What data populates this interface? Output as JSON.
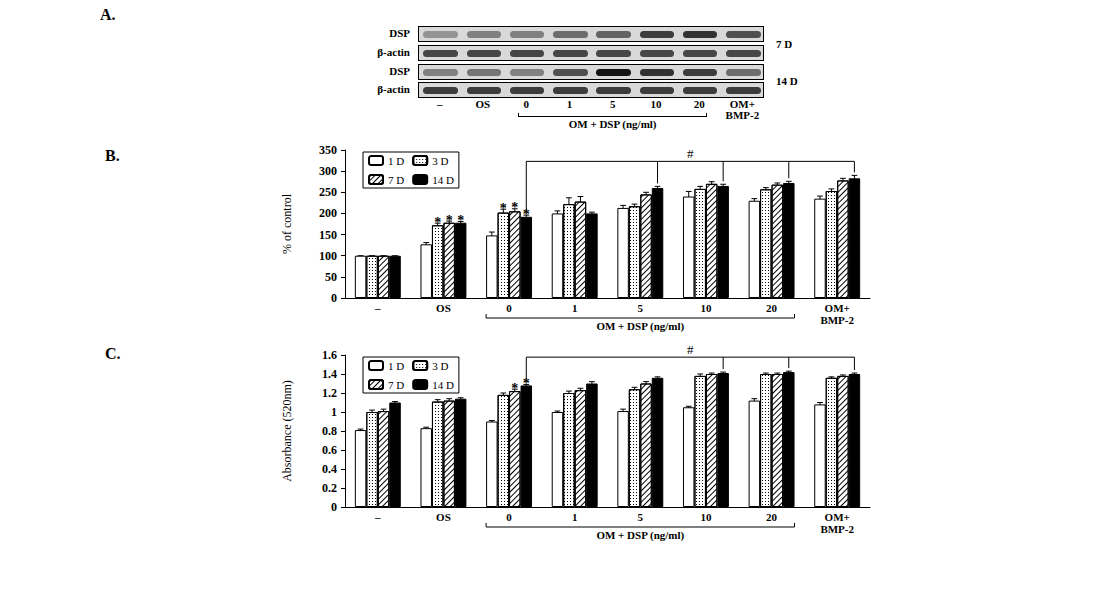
{
  "blot": {
    "title": "A.",
    "lanes": [
      "–",
      "OS",
      "0",
      "1",
      "5",
      "10",
      "20",
      "OM+\nBMP-2"
    ],
    "group": {
      "label": "OM + DSP (ng/ml)",
      "from": "0",
      "to": "20"
    },
    "rows": [
      {
        "label": "DSP",
        "group": "7 D",
        "intensity": [
          0.35,
          0.45,
          0.45,
          0.55,
          0.6,
          0.8,
          0.85,
          0.7
        ]
      },
      {
        "label": "β-actin",
        "group": "7 D",
        "intensity": [
          0.75,
          0.75,
          0.75,
          0.75,
          0.75,
          0.75,
          0.75,
          0.75
        ]
      },
      {
        "label": "DSP",
        "group": "14 D",
        "intensity": [
          0.45,
          0.5,
          0.45,
          0.7,
          1.0,
          0.85,
          0.8,
          0.55
        ]
      },
      {
        "label": "β-actin",
        "group": "14 D",
        "intensity": [
          0.8,
          0.8,
          0.8,
          0.8,
          0.8,
          0.8,
          0.8,
          0.8
        ]
      }
    ]
  },
  "chart_data": [
    {
      "type": "bar",
      "title": "B.",
      "ylabel": "% of control",
      "categories": [
        "–",
        "OS",
        "0",
        "1",
        "5",
        "10",
        "20",
        "OM+\nBMP-2"
      ],
      "ylim": [
        0,
        350
      ],
      "yticks": [
        0,
        50,
        100,
        150,
        200,
        250,
        300,
        350
      ],
      "grid": false,
      "legend": "upper left",
      "group": {
        "label": "OM + DSP (ng/ml)",
        "from": "0",
        "to": "20"
      },
      "series": [
        {
          "name": "1 D",
          "color": "#ffffff",
          "values": [
            100,
            127,
            148,
            200,
            213,
            240,
            230,
            235
          ],
          "errors": [
            0,
            4,
            8,
            6,
            6,
            12,
            5,
            6
          ]
        },
        {
          "name": "3 D",
          "color": "#ffffff",
          "values": [
            100,
            172,
            202,
            222,
            217,
            258,
            257,
            253
          ],
          "errors": [
            0,
            5,
            8,
            15,
            5,
            6,
            4,
            5
          ]
        },
        {
          "name": "7 D",
          "color": "#ffffff",
          "values": [
            100,
            178,
            205,
            228,
            245,
            270,
            268,
            278
          ],
          "errors": [
            0,
            4,
            6,
            12,
            5,
            5,
            4,
            5
          ]
        },
        {
          "name": "14 D",
          "color": "#000000",
          "values": [
            100,
            178,
            192,
            200,
            260,
            265,
            272,
            283
          ],
          "errors": [
            0,
            3,
            4,
            3,
            4,
            4,
            4,
            7
          ]
        }
      ],
      "annotations": [
        {
          "category": "OS",
          "series": "3 D",
          "text": "*"
        },
        {
          "category": "OS",
          "series": "7 D",
          "text": "*"
        },
        {
          "category": "OS",
          "series": "14 D",
          "text": "*"
        },
        {
          "category": "0",
          "series": "3 D",
          "text": "*"
        },
        {
          "category": "0",
          "series": "7 D",
          "text": "*"
        },
        {
          "category": "0",
          "series": "14 D",
          "text": "*"
        }
      ],
      "brackets": [
        {
          "from": {
            "category": "0",
            "series": "14 D"
          },
          "to": [
            {
              "category": "5",
              "series": "14 D"
            },
            {
              "category": "10",
              "series": "14 D"
            },
            {
              "category": "20",
              "series": "14 D"
            },
            {
              "category": "OM+\nBMP-2",
              "series": "14 D"
            }
          ],
          "text": "#"
        }
      ]
    },
    {
      "type": "bar",
      "title": "C.",
      "ylabel": "Absorbance (520nm)",
      "categories": [
        "–",
        "OS",
        "0",
        "1",
        "5",
        "10",
        "20",
        "OM+\nBMP-2"
      ],
      "ylim": [
        0,
        1.6
      ],
      "yticks": [
        0,
        0.2,
        0.4,
        0.6,
        0.8,
        1,
        1.2,
        1.4,
        1.6
      ],
      "grid": false,
      "legend": "upper left",
      "group": {
        "label": "OM + DSP (ng/ml)",
        "from": "0",
        "to": "20"
      },
      "series": [
        {
          "name": "1 D",
          "color": "#ffffff",
          "values": [
            0.81,
            0.83,
            0.9,
            1.0,
            1.01,
            1.05,
            1.12,
            1.08
          ],
          "errors": [
            0.01,
            0.01,
            0.01,
            0.01,
            0.02,
            0.01,
            0.02,
            0.02
          ]
        },
        {
          "name": "3 D",
          "color": "#ffffff",
          "values": [
            1.0,
            1.11,
            1.18,
            1.2,
            1.24,
            1.38,
            1.4,
            1.36
          ],
          "errors": [
            0.02,
            0.02,
            0.02,
            0.02,
            0.02,
            0.02,
            0.01,
            0.01
          ]
        },
        {
          "name": "7 D",
          "color": "#ffffff",
          "values": [
            1.01,
            1.12,
            1.22,
            1.23,
            1.3,
            1.4,
            1.4,
            1.38
          ],
          "errors": [
            0.02,
            0.02,
            0.02,
            0.02,
            0.02,
            0.01,
            0.01,
            0.01
          ]
        },
        {
          "name": "14 D",
          "color": "#000000",
          "values": [
            1.1,
            1.14,
            1.28,
            1.3,
            1.36,
            1.41,
            1.42,
            1.4
          ],
          "errors": [
            0.01,
            0.01,
            0.01,
            0.02,
            0.01,
            0.01,
            0.01,
            0.01
          ]
        }
      ],
      "annotations": [
        {
          "category": "0",
          "series": "7 D",
          "text": "*"
        },
        {
          "category": "0",
          "series": "14 D",
          "text": "*"
        }
      ],
      "brackets": [
        {
          "from": {
            "category": "0",
            "series": "14 D"
          },
          "to": [
            {
              "category": "10",
              "series": "14 D"
            },
            {
              "category": "20",
              "series": "14 D"
            },
            {
              "category": "OM+\nBMP-2",
              "series": "14 D"
            }
          ],
          "text": "#"
        }
      ]
    }
  ]
}
